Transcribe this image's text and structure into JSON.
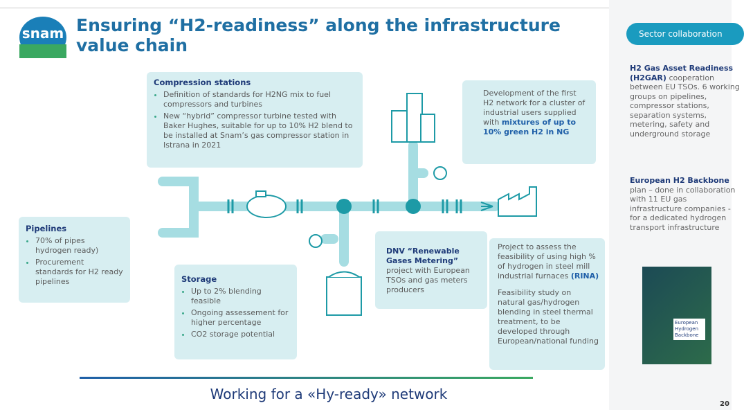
{
  "logo": "snam",
  "title": "Ensuring “H2-readiness” along the infrastructure value chain",
  "compression": {
    "heading": "Compression stations",
    "bullets": [
      "Definition of standards for H2NG mix to fuel compressors and turbines",
      "New “hybrid” compressor turbine tested with Baker Hughes, suitable for up to 10% H2 blend to be installed at Snam’s gas compressor station in Istrana in 2021"
    ]
  },
  "network": {
    "text": "Development of the first H2 network for a cluster of industrial users supplied with",
    "bold": "mixtures of up to 10% green H2 in NG"
  },
  "pipelines": {
    "heading": "Pipelines",
    "bullets": [
      "70% of pipes hydrogen ready)",
      "Procurement standards for H2 ready pipelines"
    ]
  },
  "storage": {
    "heading": "Storage",
    "bullets": [
      "Up to 2% blending feasible",
      "Ongoing assessement for higher percentage",
      "CO2 storage potential"
    ]
  },
  "dnv": {
    "bold": "DNV “Renewable Gases Metering”",
    "text": "project with European TSOs and gas meters producers"
  },
  "steel": {
    "text1": "Project to assess the feasibility of using high % of hydrogen in steel mill industrial furnaces",
    "bold1": "(RINA)",
    "text2": "Feasibility study on natural gas/hydrogen blending in steel thermal treatment, to be developed through European/national funding"
  },
  "footer": "Working for a «Hy-ready» network",
  "sidebar": {
    "pill": "Sector collaboration",
    "items": [
      {
        "bold": "H2 Gas Asset Readiness (H2GAR)",
        "text": "cooperation between EU TSOs. 6 working groups on pipelines, compressor stations, separation systems, metering, safety and underground storage"
      },
      {
        "bold": "European H2 Backbone",
        "text": "plan – done in collaboration with 11 EU gas infrastructure companies - for a dedicated hydrogen transport infrastructure"
      }
    ],
    "book": "European Hydrogen Backbone"
  },
  "page_number": "20"
}
